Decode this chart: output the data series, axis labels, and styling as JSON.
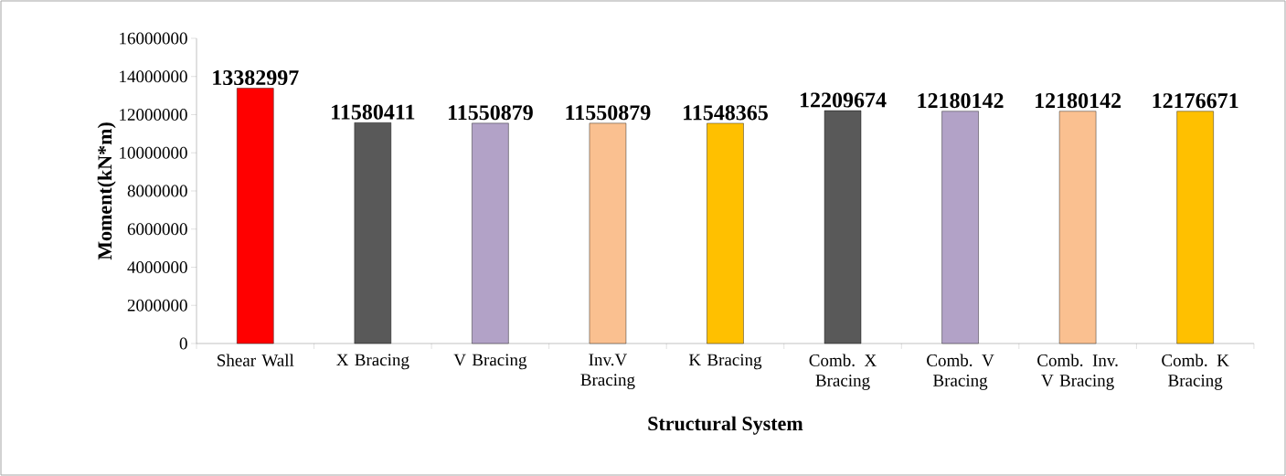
{
  "chart_data": {
    "type": "bar",
    "xlabel": "Structural System",
    "ylabel": "Moment(kN*m)",
    "categories": [
      "Shear Wall",
      "X Bracing",
      "V Bracing",
      "Inv.V Bracing",
      "K Bracing",
      "Comb. X Bracing",
      "Comb. V Bracing",
      "Comb. Inv. V Bracing",
      "Comb. K Bracing"
    ],
    "values": [
      13382997,
      11580411,
      11550879,
      11550879,
      11548365,
      12209674,
      12180142,
      12180142,
      12176671
    ],
    "colors": [
      "#ff0000",
      "#595959",
      "#b2a2c7",
      "#fac090",
      "#ffc000",
      "#595959",
      "#b2a2c7",
      "#fac090",
      "#ffc000"
    ],
    "ylim": [
      0,
      16000000
    ],
    "yticks": [
      0,
      2000000,
      4000000,
      6000000,
      8000000,
      10000000,
      12000000,
      14000000,
      16000000
    ],
    "data_labels": true
  }
}
